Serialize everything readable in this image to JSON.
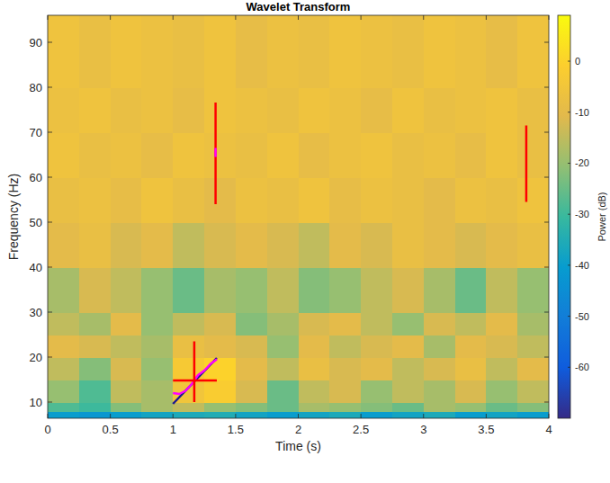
{
  "chart_data": {
    "type": "heatmap",
    "title": "Wavelet Transform",
    "x_label": "Time (s)",
    "y_label": "Frequency (Hz)",
    "xlim": [
      0,
      4
    ],
    "xticks": [
      0,
      0.5,
      1,
      1.5,
      2,
      2.5,
      3,
      3.5,
      4
    ],
    "ylim": [
      6.4,
      96
    ],
    "yticks": [
      10,
      20,
      30,
      40,
      50,
      60,
      70,
      80,
      90
    ],
    "grid": false,
    "x_bins": [
      0,
      0.25,
      0.5,
      0.75,
      1,
      1.25,
      1.5,
      1.75,
      2,
      2.25,
      2.5,
      2.75,
      3,
      3.25,
      3.5,
      3.75,
      4
    ],
    "y_bins": [
      6.4,
      8,
      10,
      15,
      20,
      25,
      30,
      40,
      50,
      60,
      70,
      80,
      96
    ],
    "cells": [
      [
        -40,
        -42,
        -40,
        -38,
        -36,
        -35,
        -38,
        -40,
        -38,
        -36,
        -40,
        -38,
        -36,
        -40,
        -38,
        -40
      ],
      [
        -28,
        -30,
        -22,
        -18,
        -15,
        -20,
        -22,
        -25,
        -18,
        -20,
        -22,
        -25,
        -18,
        -20,
        -25,
        -22
      ],
      [
        -20,
        -28,
        -15,
        -18,
        -5,
        -2,
        -12,
        -25,
        -15,
        -12,
        -20,
        -15,
        -18,
        -12,
        -20,
        -15
      ],
      [
        -15,
        -22,
        -12,
        -20,
        -3,
        0,
        -10,
        -15,
        -8,
        -12,
        -10,
        -15,
        -12,
        -8,
        -15,
        -10
      ],
      [
        -10,
        -12,
        -15,
        -18,
        -8,
        -10,
        -12,
        -20,
        -10,
        -15,
        -12,
        -10,
        -18,
        -10,
        -12,
        -15
      ],
      [
        -15,
        -18,
        -10,
        -20,
        -15,
        -12,
        -22,
        -18,
        -12,
        -10,
        -15,
        -20,
        -12,
        -15,
        -10,
        -18
      ],
      [
        -18,
        -12,
        -15,
        -20,
        -25,
        -18,
        -20,
        -15,
        -22,
        -20,
        -15,
        -12,
        -18,
        -25,
        -15,
        -20
      ],
      [
        -10,
        -8,
        -12,
        -10,
        -15,
        -12,
        -10,
        -12,
        -15,
        -10,
        -12,
        -8,
        -10,
        -12,
        -10,
        -8
      ],
      [
        -8,
        -7,
        -9,
        -6,
        -8,
        -10,
        -7,
        -8,
        -6,
        -9,
        -7,
        -8,
        -10,
        -7,
        -8,
        -6
      ],
      [
        -6,
        -8,
        -7,
        -9,
        -6,
        -7,
        -8,
        -6,
        -9,
        -7,
        -6,
        -8,
        -7,
        -9,
        -6,
        -8
      ],
      [
        -7,
        -6,
        -8,
        -7,
        -9,
        -6,
        -7,
        -8,
        -6,
        -7,
        -9,
        -6,
        -8,
        -7,
        -6,
        -8
      ],
      [
        -6,
        -8,
        -6,
        -7,
        -8,
        -6,
        -9,
        -7,
        -8,
        -6,
        -7,
        -8,
        -6,
        -7,
        -9,
        -6
      ]
    ],
    "colorbar": {
      "label": "Power (dB)",
      "lim": [
        -70,
        9
      ],
      "ticks": [
        -60,
        -50,
        -40,
        -30,
        -20,
        -10,
        0
      ]
    },
    "series": [
      {
        "type": "line",
        "color": "#1c1c8f",
        "line_style": "solid",
        "x": [
          1.0,
          1.35
        ],
        "values": [
          9.6,
          19.8
        ]
      },
      {
        "type": "line",
        "color": "#ff00ff",
        "line_style": "solid",
        "x": [
          1.0,
          1.05,
          1.1,
          1.15,
          1.2,
          1.25,
          1.3,
          1.35
        ],
        "values": [
          12,
          11.8,
          12.5,
          14,
          16,
          17,
          18.5,
          19.5
        ]
      },
      {
        "type": "line",
        "color": "#ff0000",
        "line_style": "solid",
        "x": [
          1.0,
          1.35
        ],
        "values": [
          14.8,
          14.8
        ]
      },
      {
        "type": "line",
        "color": "#ff0000",
        "line_style": "solid",
        "x": [
          1.17,
          1.17
        ],
        "values": [
          10,
          23.5
        ]
      },
      {
        "type": "line",
        "color": "#ff0000",
        "line_style": "solid",
        "x": [
          1.34,
          1.34
        ],
        "values": [
          54,
          76.6
        ]
      },
      {
        "type": "line",
        "color": "#ff00ff",
        "line_style": "solid",
        "x": [
          1.34,
          1.34
        ],
        "values": [
          64.5,
          66.5
        ]
      },
      {
        "type": "line",
        "color": "#ff0000",
        "line_style": "solid",
        "x": [
          3.82,
          3.82
        ],
        "values": [
          54.5,
          71.5
        ]
      }
    ]
  }
}
